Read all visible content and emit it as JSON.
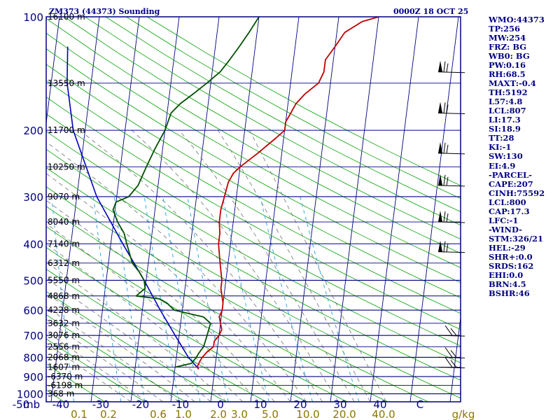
{
  "chart_data": {
    "type": "skew-t",
    "title_left": "ZM373 (44373) Sounding",
    "title_right": "0000Z 18 OCT 25",
    "pressure_labels": [
      "100",
      "200",
      "300",
      "400",
      "500",
      "600",
      "700",
      "800",
      "900",
      "1000"
    ],
    "pressure_values": [
      100,
      200,
      300,
      400,
      500,
      600,
      700,
      800,
      900,
      1000
    ],
    "height_labels": [
      {
        "p": 100,
        "text": "16100 m"
      },
      {
        "p": 150,
        "text": "13550 m"
      },
      {
        "p": 200,
        "text": "11700 m"
      },
      {
        "p": 250,
        "text": "10250 m"
      },
      {
        "p": 300,
        "text": "9070 m"
      },
      {
        "p": 350,
        "text": "8040 m"
      },
      {
        "p": 400,
        "text": "7140 m"
      },
      {
        "p": 450,
        "text": "6312 m"
      },
      {
        "p": 500,
        "text": "5550 m"
      },
      {
        "p": 550,
        "text": "4868 m"
      },
      {
        "p": 600,
        "text": "4228 m"
      },
      {
        "p": 650,
        "text": "3632 m"
      },
      {
        "p": 700,
        "text": "3076 m"
      },
      {
        "p": 750,
        "text": "2556 m"
      },
      {
        "p": 800,
        "text": "2068 m"
      },
      {
        "p": 850,
        "text": "1607 m"
      },
      {
        "p": 900,
        "text": "-6370 m"
      },
      {
        "p": 950,
        "text": "-6198 m"
      },
      {
        "p": 1000,
        "text": "368 m"
      }
    ],
    "x_label_mb": "mb",
    "x_ticks": [
      "-50",
      "-40",
      "-30",
      "-20",
      "-10",
      "0",
      "10",
      "20",
      "30",
      "40",
      "C"
    ],
    "x_tick_values": [
      -50,
      -40,
      -30,
      -20,
      -10,
      0,
      10,
      20,
      30,
      40,
      50
    ],
    "mixing_labels": [
      "0.1",
      "0.2",
      "0.6",
      "1.0",
      "2.0",
      "3.0",
      "5.0",
      "10.0",
      "20.0",
      "40.0",
      "g/kg"
    ],
    "mixing_values": [
      0.1,
      0.2,
      0.6,
      1.0,
      2.0,
      3.0,
      5.0,
      10.0,
      20.0,
      40.0
    ],
    "temperature_profile": [
      [
        -4.0,
        860
      ],
      [
        -4.5,
        850
      ],
      [
        -4.0,
        820
      ],
      [
        -3.5,
        800
      ],
      [
        -2.5,
        775
      ],
      [
        -1.0,
        750
      ],
      [
        -1.0,
        725
      ],
      [
        0.0,
        700
      ],
      [
        0.5,
        675
      ],
      [
        0.0,
        650
      ],
      [
        -0.5,
        625
      ],
      [
        0.0,
        600
      ],
      [
        0.0,
        575
      ],
      [
        -0.5,
        550
      ],
      [
        -1.0,
        525
      ],
      [
        -1.0,
        500
      ],
      [
        -1.5,
        475
      ],
      [
        -2.0,
        450
      ],
      [
        -2.5,
        425
      ],
      [
        -3.0,
        400
      ],
      [
        -3.0,
        375
      ],
      [
        -3.5,
        350
      ],
      [
        -3.5,
        325
      ],
      [
        -3.0,
        300
      ],
      [
        -2.5,
        275
      ],
      [
        -1.5,
        260
      ],
      [
        0.0,
        250
      ],
      [
        4.0,
        230
      ],
      [
        8.0,
        210
      ],
      [
        10.0,
        200
      ],
      [
        10.0,
        190
      ],
      [
        11.0,
        180
      ],
      [
        12.0,
        170
      ],
      [
        14.0,
        160
      ],
      [
        17.0,
        150
      ],
      [
        18.0,
        140
      ],
      [
        18.0,
        130
      ],
      [
        20.0,
        120
      ],
      [
        22.0,
        110
      ],
      [
        26.0,
        103
      ],
      [
        30.0,
        100
      ]
    ],
    "dewpoint_profile": [
      [
        -10.0,
        850
      ],
      [
        -6.0,
        830
      ],
      [
        -5.0,
        800
      ],
      [
        -4.5,
        780
      ],
      [
        -3.5,
        750
      ],
      [
        -3.0,
        700
      ],
      [
        -2.5,
        650
      ],
      [
        -4.5,
        625
      ],
      [
        -12.0,
        600
      ],
      [
        -14.0,
        575
      ],
      [
        -16.0,
        560
      ],
      [
        -22.0,
        550
      ],
      [
        -20.0,
        525
      ],
      [
        -20.5,
        500
      ],
      [
        -22.0,
        475
      ],
      [
        -24.0,
        450
      ],
      [
        -26.0,
        400
      ],
      [
        -27.0,
        375
      ],
      [
        -29.0,
        350
      ],
      [
        -30.5,
        325
      ],
      [
        -30.0,
        310
      ],
      [
        -27.0,
        300
      ],
      [
        -25.0,
        280
      ],
      [
        -23.5,
        250
      ],
      [
        -22.0,
        225
      ],
      [
        -20.0,
        200
      ],
      [
        -19.0,
        180
      ],
      [
        -17.0,
        170
      ],
      [
        -14.0,
        160
      ],
      [
        -11.0,
        150
      ],
      [
        -8.0,
        140
      ],
      [
        -6.0,
        130
      ],
      [
        -4.0,
        120
      ],
      [
        -2.0,
        110
      ],
      [
        0.0,
        100
      ]
    ],
    "parcel_profile": [
      [
        -4.0,
        860
      ],
      [
        -7.0,
        800
      ],
      [
        -11.0,
        700
      ],
      [
        -15.5,
        600
      ],
      [
        -20.5,
        500
      ],
      [
        -27.0,
        400
      ],
      [
        -35.0,
        300
      ],
      [
        -43.0,
        200
      ],
      [
        -46.0,
        150
      ],
      [
        -47.0,
        120
      ]
    ],
    "wind_barb_pressures": [
      140,
      180,
      230,
      280,
      350,
      420,
      700,
      800,
      850
    ],
    "stats": [
      "WMO:44373",
      "TP:256",
      "MW:254",
      "FRZ: BG",
      "WB0: BG",
      "PW:0.16",
      "RH:68.5",
      "MAXT:-0.4",
      "TH:5192",
      "L57:4.8",
      "LCL:807",
      "LI:17.3",
      "SI:18.9",
      "TT:28",
      "KI:-1",
      "SW:130",
      "EI:4.9",
      "-PARCEL-",
      "CAPE:207",
      "CINH:75592",
      "LCL:800",
      "CAP:17.3",
      "LFC:-1",
      "-WIND-",
      "STM:326/21",
      "HEL:-29",
      "SHR+:0.0",
      "SRDS:162",
      "EHI:0.0",
      "BRN:4.5",
      "BSHR:46"
    ]
  },
  "colors": {
    "frame": "#000080",
    "isobar": "#000080",
    "isotherm": "#000080",
    "dry_adiabat": "#00a000",
    "moist_adiabat": "#707070",
    "mixing_ratio": "#20a0e0",
    "temperature": "#c00000",
    "dewpoint": "#005000",
    "parcel": "#0000c0",
    "mixing_label": "#8b7500"
  }
}
